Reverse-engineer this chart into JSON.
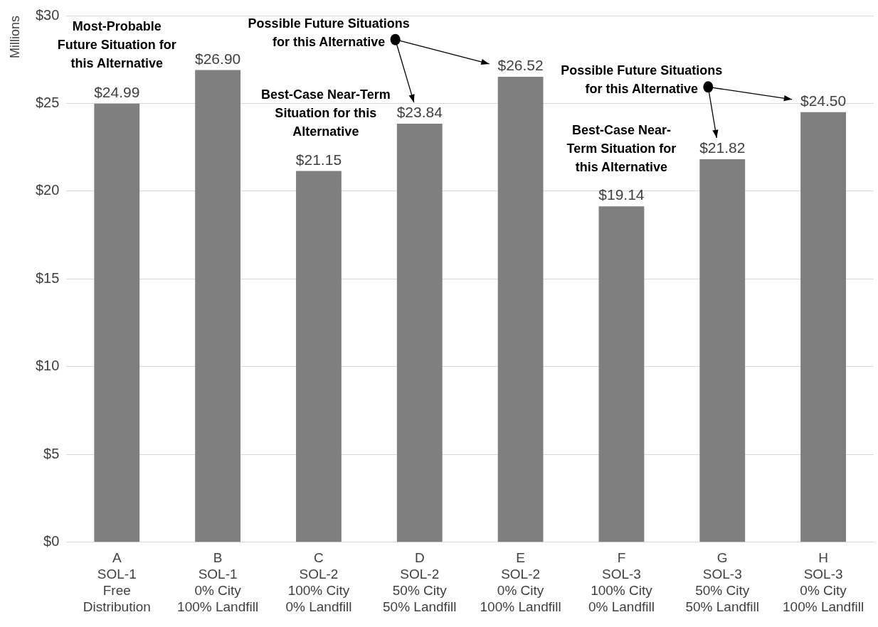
{
  "chart_data": {
    "type": "bar",
    "ylabel": "Millions",
    "categories": [
      "A\nSOL-1\nFree\nDistribution",
      "B\nSOL-1\n0% City\n100% Landfill",
      "C\nSOL-2\n100% City\n0% Landfill",
      "D\nSOL-2\n50% City\n50% Landfill",
      "E\nSOL-2\n0% City\n100% Landfill",
      "F\nSOL-3\n100% City\n0% Landfill",
      "G\nSOL-3\n50% City\n50% Landfill",
      "H\nSOL-3\n0% City\n100% Landfill"
    ],
    "values": [
      24.99,
      26.9,
      21.15,
      23.84,
      26.52,
      19.14,
      21.82,
      24.5
    ],
    "value_labels": [
      "$24.99",
      "$26.90",
      "$21.15",
      "$23.84",
      "$26.52",
      "$19.14",
      "$21.82",
      "$24.50"
    ],
    "color": "#7f7f7f",
    "ylim": [
      0,
      30
    ],
    "yticks": [
      {
        "value": 0,
        "label": "$0"
      },
      {
        "value": 5,
        "label": "$5"
      },
      {
        "value": 10,
        "label": "$10"
      },
      {
        "value": 15,
        "label": "$15"
      },
      {
        "value": 20,
        "label": "$20"
      },
      {
        "value": 25,
        "label": "$25"
      },
      {
        "value": 30,
        "label": "$30"
      }
    ],
    "grid": "y",
    "legend": false,
    "annotations": [
      "Most-Probable\nFuture Situation for\nthis Alternative",
      "Possible Future Situations\nfor this Alternative",
      "Best-Case Near-Term\nSituation for this\nAlternative",
      "Possible Future Situations\nfor this Alternative",
      "Best-Case Near-\nTerm Situation for\nthis Alternative"
    ]
  }
}
